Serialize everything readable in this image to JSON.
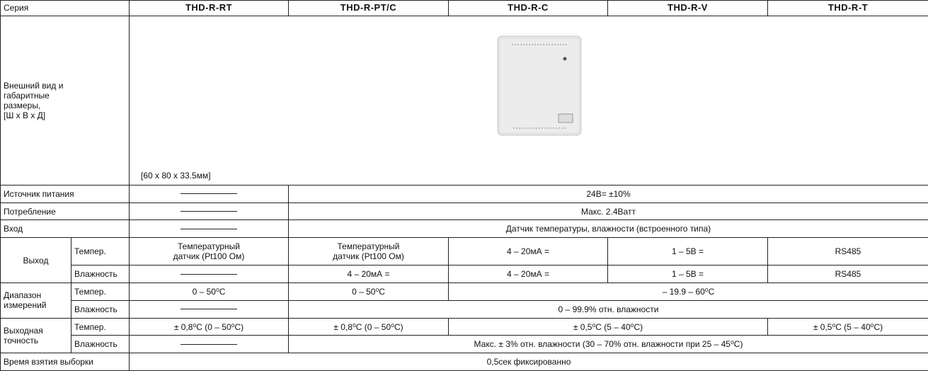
{
  "table": {
    "header": [
      "Серия",
      "THD-R-RT",
      "THD-R-PT/C",
      "THD-R-C",
      "THD-R-V",
      "THD-R-T"
    ],
    "appearance": {
      "label": "Внешний вид и\nгабаритные\nразмеры,\n[Ш x В x Д]",
      "dimensions": "[60 x 80 x 33.5мм]"
    },
    "rows": [
      [
        "Источник питания",
        "24В= ±10%"
      ],
      [
        "Потребление",
        "Макс. 2.4Ватт"
      ],
      [
        "Вход",
        "Датчик температуры, влажности (встроенного типа)"
      ],
      [
        "Выход",
        "Темпер.",
        "Температурный\nдатчик (Pt100 Ом)",
        "Температурный\nдатчик (Pt100 Ом)",
        "4 – 20мА =",
        "1 – 5В =",
        "RS485"
      ],
      [
        "Влажность",
        "4 – 20мА =",
        "4 – 20мА =",
        "1 – 5В =",
        "RS485"
      ],
      [
        "Диапазон\nизмерений",
        "Темпер.",
        "0 – 50⁰C",
        "0 – 50⁰C",
        "– 19.9 – 60⁰C"
      ],
      [
        "Влажность",
        "0 – 99.9% отн. влажности"
      ],
      [
        "Выходная\nточность",
        "Темпер.",
        "± 0,8⁰C (0 – 50⁰C)",
        "± 0,8⁰C (0 – 50⁰C)",
        "± 0,5⁰C (5 – 40⁰C)",
        "± 0,5⁰C (5 – 40⁰C)"
      ],
      [
        "Влажность",
        "Макс. ± 3% отн. влажности (30 – 70% отн. влажности при 25 – 45⁰C)"
      ],
      [
        "Время взятия выборки",
        "0,5сек фиксированно"
      ]
    ]
  }
}
